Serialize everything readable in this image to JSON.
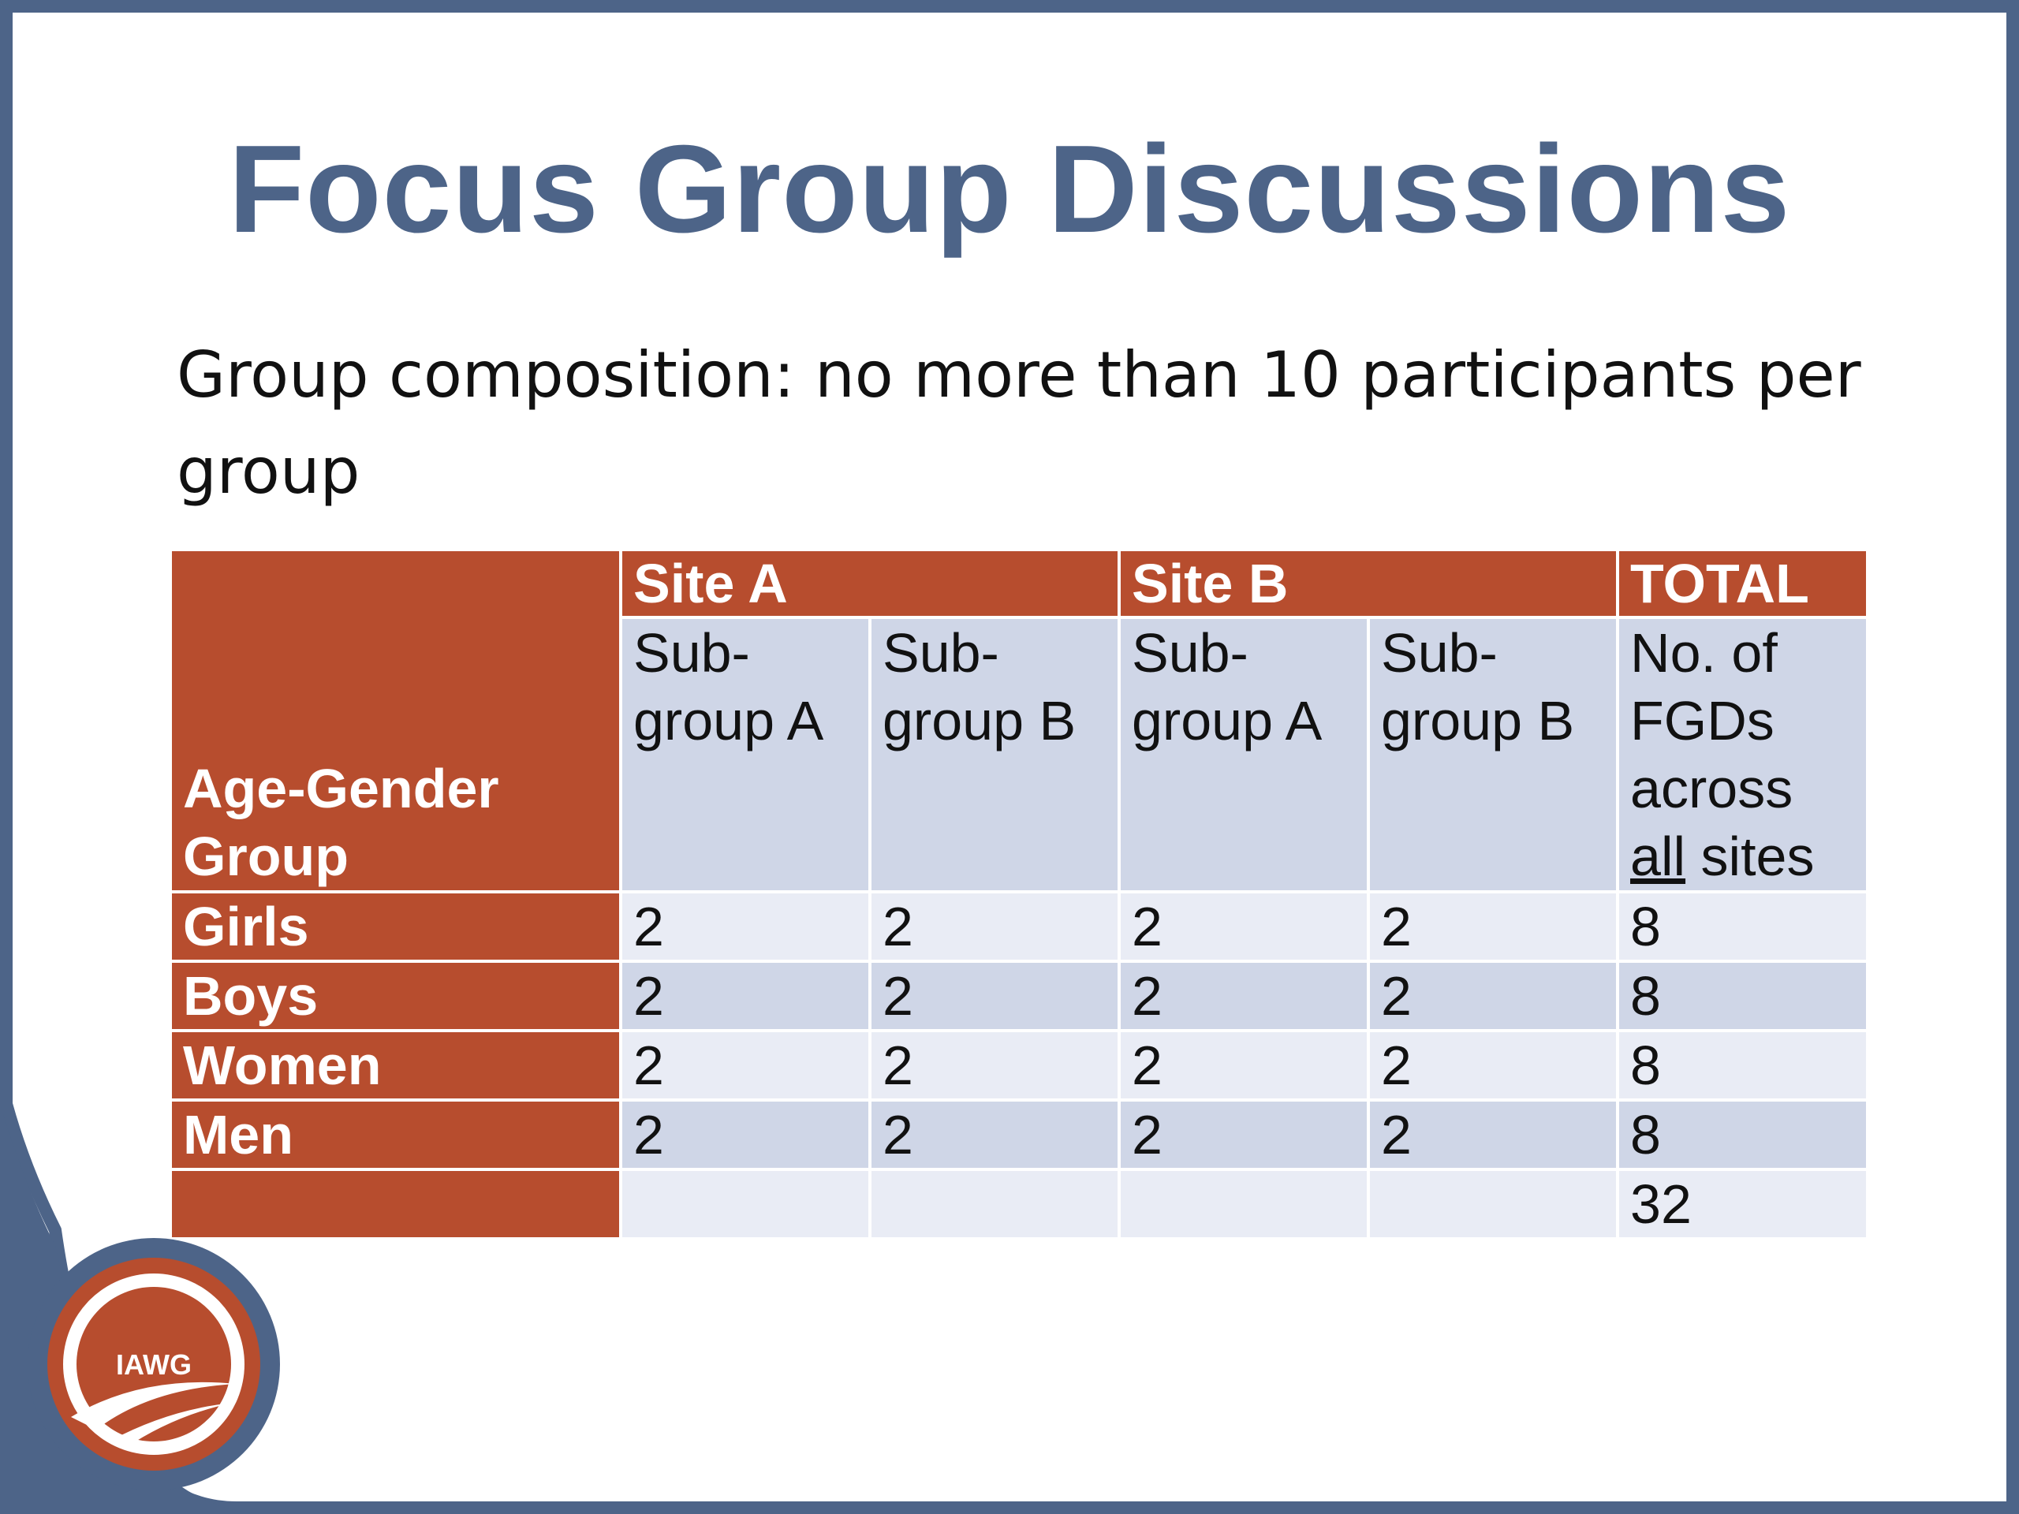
{
  "title": "Focus Group Discussions",
  "subtitle": "Group composition: no more than 10 participants per group",
  "logo": {
    "text": "IAWG"
  },
  "colors": {
    "frame": "#4d6488",
    "accent": "#b74d2e",
    "row_light": "#e9ecf5",
    "row_dark": "#cfd6e7"
  },
  "table": {
    "corner_label": "Age-Gender Group",
    "site_a": "Site A",
    "site_b": "Site B",
    "total": "TOTAL",
    "sub_a1": "Sub-group A",
    "sub_a2": "Sub-group B",
    "sub_b1": "Sub-group A",
    "sub_b2": "Sub-group B",
    "total_desc_1": "No. of FGDs across",
    "total_desc_underlined": "all",
    "total_desc_2": "sites",
    "rows": [
      {
        "label": "Girls",
        "values": [
          "2",
          "2",
          "2",
          "2",
          "8"
        ]
      },
      {
        "label": "Boys",
        "values": [
          "2",
          "2",
          "2",
          "2",
          "8"
        ]
      },
      {
        "label": "Women",
        "values": [
          "2",
          "2",
          "2",
          "2",
          "8"
        ]
      },
      {
        "label": "Men",
        "values": [
          "2",
          "2",
          "2",
          "2",
          "8"
        ]
      }
    ],
    "grand_total": "32"
  }
}
